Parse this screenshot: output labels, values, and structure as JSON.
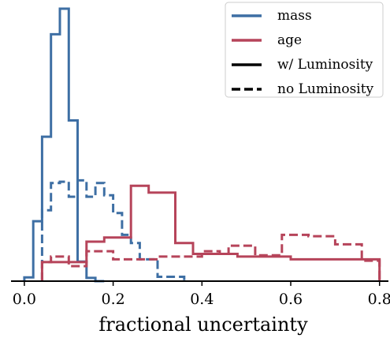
{
  "chart_data": {
    "type": "histogram",
    "title": "",
    "xlabel": "fractional uncertainty",
    "ylabel": "",
    "xlim": [
      -0.03,
      0.82
    ],
    "ylim": [
      0,
      1
    ],
    "x_ticks": [
      0.0,
      0.2,
      0.4,
      0.6,
      0.8
    ],
    "x_tick_labels": [
      "0.0",
      "0.2",
      "0.4",
      "0.6",
      "0.8"
    ],
    "y_ticks_shown": false,
    "grid": false,
    "legend_position": "top-right",
    "colors": {
      "mass": "#3e6fa4",
      "age": "#b6445a",
      "axis": "#000000"
    },
    "legend": [
      {
        "label": "mass",
        "kind": "color",
        "color": "#3e6fa4"
      },
      {
        "label": "age",
        "kind": "color",
        "color": "#b6445a"
      },
      {
        "label": "w/ Luminosity",
        "kind": "solid"
      },
      {
        "label": "no Luminosity",
        "kind": "dashed"
      }
    ],
    "series": [
      {
        "quantity": "mass",
        "luminosity": "w/ Luminosity",
        "style": "solid",
        "color": "#3e6fa4",
        "bin_edges": [
          0.0,
          0.02,
          0.04,
          0.06,
          0.08,
          0.1,
          0.12,
          0.14,
          0.16,
          0.18
        ],
        "values": [
          0.014,
          0.22,
          0.53,
          0.906,
          1.0,
          0.59,
          0.072,
          0.012,
          0.0
        ]
      },
      {
        "quantity": "mass",
        "luminosity": "no Luminosity",
        "style": "dashed",
        "color": "#3e6fa4",
        "bin_edges": [
          0.04,
          0.06,
          0.08,
          0.1,
          0.12,
          0.14,
          0.16,
          0.18,
          0.2,
          0.22,
          0.24,
          0.26,
          0.28,
          0.3,
          0.32,
          0.34,
          0.36
        ],
        "values": [
          0.26,
          0.36,
          0.365,
          0.31,
          0.37,
          0.31,
          0.36,
          0.315,
          0.25,
          0.17,
          0.14,
          0.08,
          0.08,
          0.016,
          0.016,
          0.016
        ]
      },
      {
        "quantity": "age",
        "luminosity": "w/ Luminosity",
        "style": "solid",
        "color": "#b6445a",
        "bin_edges": [
          0.04,
          0.06,
          0.08,
          0.1,
          0.12,
          0.14,
          0.16,
          0.18,
          0.2,
          0.22,
          0.24,
          0.26,
          0.28,
          0.3,
          0.32,
          0.34,
          0.36,
          0.38,
          0.4,
          0.42,
          0.44,
          0.46,
          0.48,
          0.5,
          0.52,
          0.54,
          0.56,
          0.58,
          0.6,
          0.62,
          0.64,
          0.66,
          0.68,
          0.7,
          0.72,
          0.74,
          0.76,
          0.78,
          0.8
        ],
        "values": [
          0.07,
          0.07,
          0.07,
          0.07,
          0.07,
          0.145,
          0.145,
          0.16,
          0.16,
          0.16,
          0.35,
          0.35,
          0.325,
          0.325,
          0.325,
          0.14,
          0.14,
          0.1,
          0.1,
          0.1,
          0.1,
          0.1,
          0.09,
          0.09,
          0.09,
          0.09,
          0.09,
          0.09,
          0.08,
          0.08,
          0.08,
          0.08,
          0.08,
          0.08,
          0.08,
          0.08,
          0.08,
          0.08
        ]
      },
      {
        "quantity": "age",
        "luminosity": "no Luminosity",
        "style": "dashed",
        "color": "#b6445a",
        "bin_edges": [
          0.04,
          0.06,
          0.08,
          0.1,
          0.12,
          0.14,
          0.16,
          0.18,
          0.2,
          0.22,
          0.24,
          0.26,
          0.28,
          0.3,
          0.32,
          0.34,
          0.36,
          0.38,
          0.4,
          0.42,
          0.44,
          0.46,
          0.48,
          0.5,
          0.52,
          0.54,
          0.56,
          0.58,
          0.6,
          0.62,
          0.64,
          0.66,
          0.68,
          0.7,
          0.72,
          0.74,
          0.76,
          0.78,
          0.8
        ],
        "values": [
          0.07,
          0.09,
          0.09,
          0.055,
          0.055,
          0.11,
          0.11,
          0.11,
          0.08,
          0.08,
          0.08,
          0.08,
          0.08,
          0.09,
          0.09,
          0.09,
          0.09,
          0.09,
          0.11,
          0.11,
          0.1,
          0.13,
          0.13,
          0.13,
          0.095,
          0.095,
          0.095,
          0.17,
          0.17,
          0.17,
          0.165,
          0.165,
          0.165,
          0.135,
          0.135,
          0.135,
          0.075,
          0.075
        ]
      }
    ]
  }
}
